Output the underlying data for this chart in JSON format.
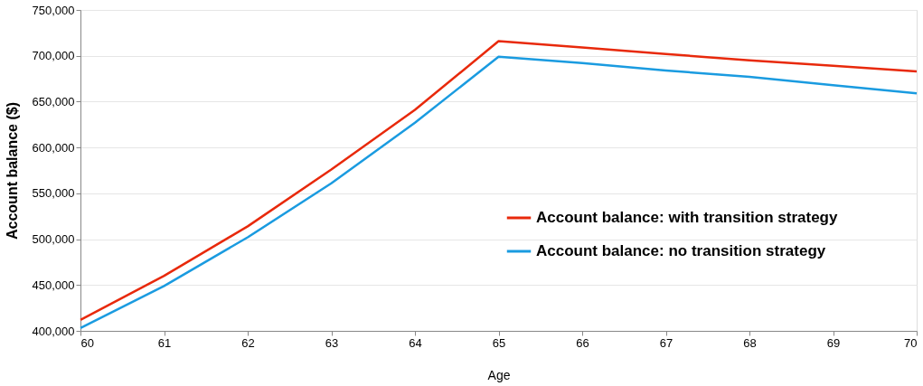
{
  "chart_data": {
    "type": "line",
    "xlabel": "Age",
    "ylabel": "Account balance ($)",
    "x": [
      60,
      61,
      62,
      63,
      64,
      65,
      66,
      67,
      68,
      69,
      70
    ],
    "series": [
      {
        "name": "Account balance: with transition strategy",
        "color": "#e8290b",
        "values": [
          412000,
          460000,
          514000,
          576000,
          641000,
          716000,
          709000,
          702000,
          695000,
          689000,
          683000
        ]
      },
      {
        "name": "Account balance: no transition strategy",
        "color": "#1a9be0",
        "values": [
          403000,
          449000,
          502000,
          561000,
          627000,
          699000,
          692000,
          684000,
          677000,
          668000,
          659000
        ]
      }
    ],
    "xlim": [
      60,
      70
    ],
    "xticks": [
      60,
      61,
      62,
      63,
      64,
      65,
      66,
      67,
      68,
      69,
      70
    ],
    "ylim": [
      400000,
      750000
    ],
    "yticks": [
      {
        "value": 400000,
        "label": "400,000"
      },
      {
        "value": 450000,
        "label": "450,000"
      },
      {
        "value": 500000,
        "label": "500,000"
      },
      {
        "value": 550000,
        "label": "550,000"
      },
      {
        "value": 600000,
        "label": "600,000"
      },
      {
        "value": 650000,
        "label": "650,000"
      },
      {
        "value": 700000,
        "label": "700,000"
      },
      {
        "value": 750000,
        "label": "750,000"
      }
    ],
    "grid": "y",
    "legend": "right",
    "marker": "none",
    "line_style": "solid"
  }
}
